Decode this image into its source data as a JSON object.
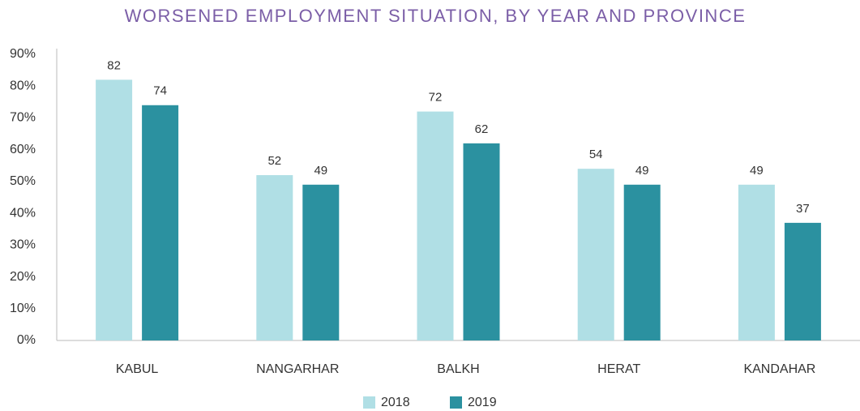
{
  "chart_data": {
    "type": "bar",
    "title": "WORSENED EMPLOYMENT SITUATION, BY YEAR AND PROVINCE",
    "categories": [
      "KABUL",
      "NANGARHAR",
      "BALKH",
      "HERAT",
      "KANDAHAR"
    ],
    "series": [
      {
        "name": "2018",
        "color": "#b0dfe5",
        "values": [
          82,
          52,
          72,
          54,
          49
        ]
      },
      {
        "name": "2019",
        "color": "#2b91a0",
        "values": [
          74,
          49,
          62,
          49,
          37
        ]
      }
    ],
    "ylim": [
      0,
      90
    ],
    "yticks": [
      {
        "value": 0,
        "label": "0%"
      },
      {
        "value": 10,
        "label": "10%"
      },
      {
        "value": 20,
        "label": "20%"
      },
      {
        "value": 30,
        "label": "30%"
      },
      {
        "value": 40,
        "label": "40%"
      },
      {
        "value": 50,
        "label": "50%"
      },
      {
        "value": 60,
        "label": "60%"
      },
      {
        "value": 70,
        "label": "70%"
      },
      {
        "value": 80,
        "label": "80%"
      },
      {
        "value": 90,
        "label": "90%"
      }
    ],
    "grid": false,
    "legend": "bottom"
  }
}
